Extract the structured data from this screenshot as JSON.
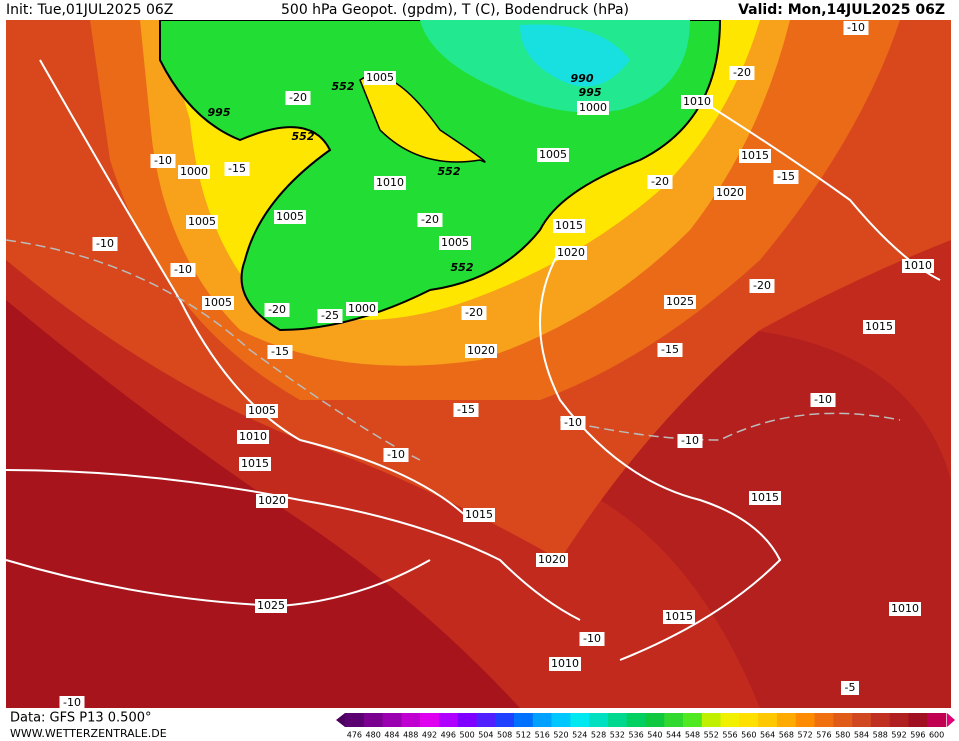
{
  "header": {
    "init": "Init: Tue,01JUL2025 06Z",
    "title": "500 hPa Geopot. (gpdm), T (C), Bodendruck (hPa)",
    "valid": "Valid: Mon,14JUL2025 06Z"
  },
  "footer": {
    "data": "Data: GFS P13 0.500°",
    "site": "WWW.WETTERZENTRALE.DE"
  },
  "colorbar": {
    "levels": [
      476,
      480,
      484,
      488,
      492,
      496,
      500,
      504,
      508,
      512,
      516,
      520,
      524,
      528,
      532,
      536,
      540,
      544,
      548,
      552,
      556,
      560,
      564,
      568,
      572,
      576,
      580,
      584,
      588,
      592,
      596,
      600
    ],
    "colors": [
      "#5a0070",
      "#7a0090",
      "#9a00b0",
      "#c000d0",
      "#e000f0",
      "#b000ff",
      "#8000ff",
      "#5020ff",
      "#2040ff",
      "#0070ff",
      "#00a0ff",
      "#00c8ff",
      "#00e8f0",
      "#00e0c0",
      "#00d890",
      "#00d060",
      "#10c840",
      "#30d830",
      "#50e820",
      "#c0f000",
      "#f0f000",
      "#ffe000",
      "#ffc800",
      "#ffaa00",
      "#ff8c00",
      "#f07010",
      "#e05a18",
      "#d04820",
      "#c03020",
      "#b02020",
      "#a01020",
      "#c00050"
    ]
  },
  "map_labels": [
    "995",
    "1000",
    "1005",
    "1005",
    "1005",
    "1010",
    "1015",
    "1020",
    "1025",
    "1020",
    "1015",
    "1010",
    "1015",
    "1015",
    "1010",
    "1010",
    "1015",
    "1020",
    "1015",
    "1025",
    "1020",
    "1015",
    "1005",
    "1010",
    "990",
    "995",
    "1000",
    "1005",
    "1010",
    "1005",
    "1000",
    "1005",
    "1020",
    "552",
    "552",
    "552",
    "552",
    "-20",
    "-20",
    "-20",
    "-20",
    "-20",
    "-20",
    "-20",
    "-15",
    "-15",
    "-15",
    "-15",
    "-15",
    "-10",
    "-10",
    "-10",
    "-10",
    "-10",
    "-10",
    "-10",
    "-10",
    "-10",
    "-10",
    "-5",
    "-25"
  ]
}
